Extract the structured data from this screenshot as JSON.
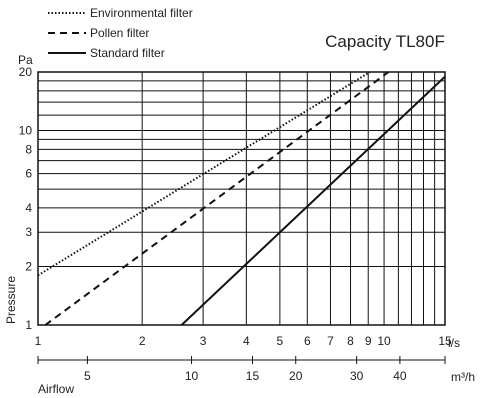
{
  "chart_data": {
    "type": "line",
    "title": "Capacity TL80F",
    "xscale": "log",
    "yscale": "log",
    "grid": true,
    "legend_position": "top-left",
    "y_axis": {
      "unit_label": "Pa",
      "label": "Pressure",
      "range": [
        1,
        20
      ],
      "tick_labels": [
        "1",
        "2",
        "3",
        "4",
        "6",
        "8",
        "10",
        "20"
      ],
      "tick_values": [
        1,
        2,
        3,
        4,
        6,
        8,
        10,
        20
      ]
    },
    "x_axis_primary": {
      "unit_label": "l/s",
      "range": [
        1,
        15
      ],
      "tick_labels": [
        "1",
        "2",
        "3",
        "4",
        "5",
        "6",
        "7",
        "8",
        "9",
        "10",
        "15"
      ],
      "tick_values": [
        1,
        2,
        3,
        4,
        5,
        6,
        7,
        8,
        9,
        10,
        15
      ]
    },
    "x_axis_secondary": {
      "unit_label": "m³/h",
      "label": "Airflow",
      "tick_labels": [
        "5",
        "10",
        "15",
        "20",
        "30",
        "40"
      ],
      "tick_values": [
        5,
        10,
        15,
        20,
        30,
        40
      ]
    },
    "series": [
      {
        "name": "Environmental filter",
        "style": "dotted",
        "x": [
          1,
          9.1
        ],
        "y": [
          1.8,
          20
        ]
      },
      {
        "name": "Pollen filter",
        "style": "dashed",
        "x": [
          1.05,
          10.3
        ],
        "y": [
          1,
          20
        ]
      },
      {
        "name": "Standard filter",
        "style": "solid",
        "x": [
          2.6,
          15.5
        ],
        "y": [
          1,
          20
        ]
      }
    ]
  }
}
